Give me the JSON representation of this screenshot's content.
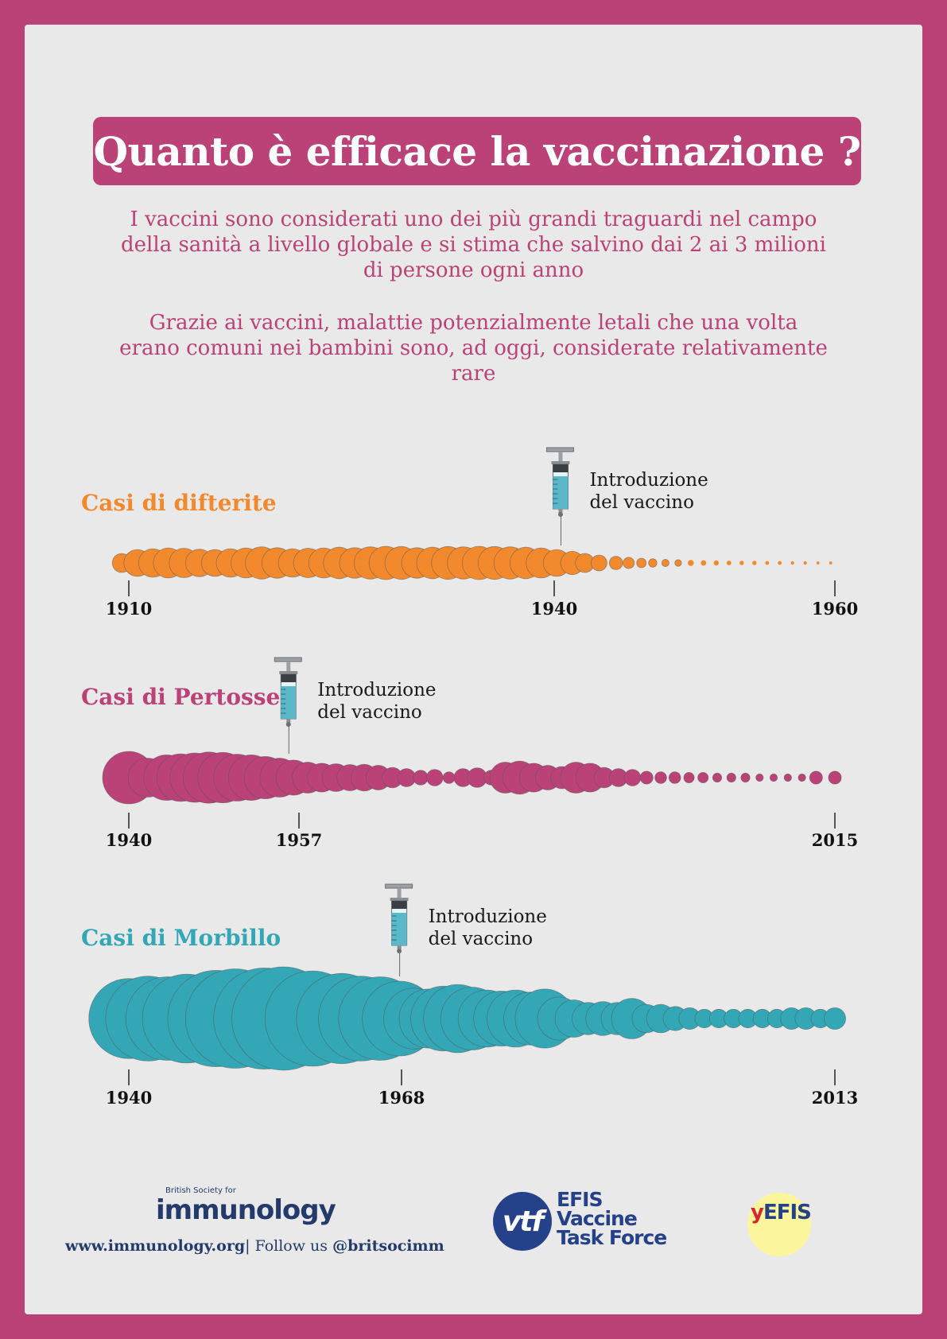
{
  "title": "Quanto è efficace la vaccinazione ?",
  "intro": [
    "I vaccini sono considerati uno dei più grandi traguardi nel campo della sanità a livello globale e si stima che salvino dai 2 ai 3 milioni di persone ogni anno",
    "Grazie ai vaccini, malattie potenzialmente letali che una volta erano comuni nei bambini sono, ad oggi, considerate relativamente rare"
  ],
  "colors": {
    "background": "#bb4277",
    "card": "#e9e9e9",
    "diphtheria": "#f2892c",
    "pertussis": "#bb4277",
    "measles": "#33a7b6"
  },
  "vaccine_label": [
    "Introduzione",
    "del vaccino"
  ],
  "chart_data": [
    {
      "type": "scatter",
      "title": "Casi di difterite",
      "color": "#f2892c",
      "x_ticks": [
        "1910",
        "1940",
        "1960"
      ],
      "xlim": [
        1910,
        1960
      ],
      "vaccine_year": 1940.6,
      "note": "relative case counts shown as bubble size",
      "years": [
        1909.5,
        1910.6,
        1911.7,
        1912.8,
        1913.9,
        1915,
        1916.1,
        1917.2,
        1918.3,
        1919.4,
        1920.5,
        1921.6,
        1922.7,
        1923.8,
        1924.9,
        1926,
        1927.1,
        1928.2,
        1929.3,
        1930.4,
        1931.5,
        1932.6,
        1933.7,
        1934.8,
        1935.9,
        1937,
        1938.1,
        1939.2,
        1940.3,
        1941.4,
        1942.3,
        1943.3,
        1944.5,
        1945.4,
        1946.3,
        1947.1,
        1948,
        1948.9,
        1949.8,
        1950.7,
        1951.6,
        1952.5,
        1953.4,
        1954.3,
        1955.2,
        1956.1,
        1957,
        1957.9,
        1958.8,
        1959.7
      ],
      "values": [
        20,
        40,
        45,
        50,
        48,
        42,
        40,
        45,
        50,
        58,
        52,
        45,
        48,
        50,
        55,
        52,
        58,
        62,
        60,
        52,
        55,
        60,
        58,
        62,
        60,
        58,
        55,
        50,
        40,
        30,
        20,
        14,
        10,
        7,
        5,
        4,
        3,
        2.5,
        2,
        1.6,
        1.4,
        1.2,
        1,
        1,
        0.8,
        0.8,
        0.6,
        0.6,
        0.5,
        0.5
      ]
    },
    {
      "type": "scatter",
      "title": "Casi di Pertosse",
      "color": "#bb4277",
      "x_ticks": [
        "1940",
        "1957",
        "2015"
      ],
      "xlim": [
        1940,
        2015
      ],
      "vaccine_year": 1957,
      "note": "relative case counts shown as bubble size",
      "years": [
        1940,
        1942,
        1944,
        1945.5,
        1947,
        1948.5,
        1950,
        1951.5,
        1953,
        1954.5,
        1956,
        1957.5,
        1959,
        1960.5,
        1962,
        1963.5,
        1965,
        1966.5,
        1968,
        1969.5,
        1971,
        1972.5,
        1974,
        1975.5,
        1977,
        1978.5,
        1980,
        1981.5,
        1983,
        1984.5,
        1986,
        1987.5,
        1989,
        1990.5,
        1992,
        1993.5,
        1995,
        1996.5,
        1998,
        1999.5,
        2001,
        2002.5,
        2004,
        2005.5,
        2007,
        2008.5,
        2010,
        2011.5,
        2013,
        2015
      ],
      "values": [
        100,
        55,
        75,
        82,
        88,
        95,
        92,
        80,
        75,
        65,
        55,
        45,
        35,
        30,
        28,
        25,
        26,
        22,
        15,
        12,
        8,
        10,
        5,
        12,
        14,
        8,
        35,
        40,
        30,
        22,
        18,
        35,
        30,
        15,
        12,
        10,
        6,
        5,
        5,
        4,
        4,
        3,
        3,
        3,
        2,
        2,
        2,
        2,
        6,
        6
      ]
    },
    {
      "type": "scatter",
      "title": "Casi di Morbillo",
      "color": "#33a7b6",
      "x_ticks": [
        "1940",
        "1968",
        "2013"
      ],
      "xlim": [
        1940,
        2013
      ],
      "vaccine_year": 1968,
      "note": "relative case counts shown as bubble size",
      "years": [
        1940,
        1942,
        1944,
        1946,
        1949,
        1951,
        1954,
        1956,
        1959,
        1962,
        1964,
        1966,
        1968,
        1969.5,
        1971,
        1972.5,
        1974,
        1975.5,
        1977,
        1978.5,
        1980,
        1981.5,
        1983,
        1984.5,
        1986,
        1987.5,
        1989,
        1990.5,
        1992,
        1993.5,
        1995,
        1996.5,
        1998,
        1999.5,
        2001,
        2002.5,
        2004,
        2005.5,
        2007,
        2008.5,
        2010,
        2011.5,
        2013
      ],
      "values": [
        55,
        62,
        60,
        68,
        80,
        85,
        88,
        92,
        78,
        70,
        62,
        60,
        48,
        32,
        30,
        36,
        40,
        34,
        28,
        26,
        28,
        24,
        30,
        16,
        12,
        9,
        10,
        9,
        14,
        7,
        7,
        5,
        4,
        3,
        3,
        3,
        3,
        3,
        3,
        4,
        4,
        3,
        4
      ]
    }
  ],
  "footer": {
    "bsi_small": "British Society for",
    "bsi_big": "immunology",
    "url": "www.immunology.org",
    "follow": "| Follow us ",
    "handle": "@britsocimm",
    "vtf_mark": "vtf",
    "vtf_lines": [
      "EFIS",
      "Vaccine",
      "Task Force"
    ],
    "yefis_y": "y",
    "yefis_rest": "EFIS"
  }
}
